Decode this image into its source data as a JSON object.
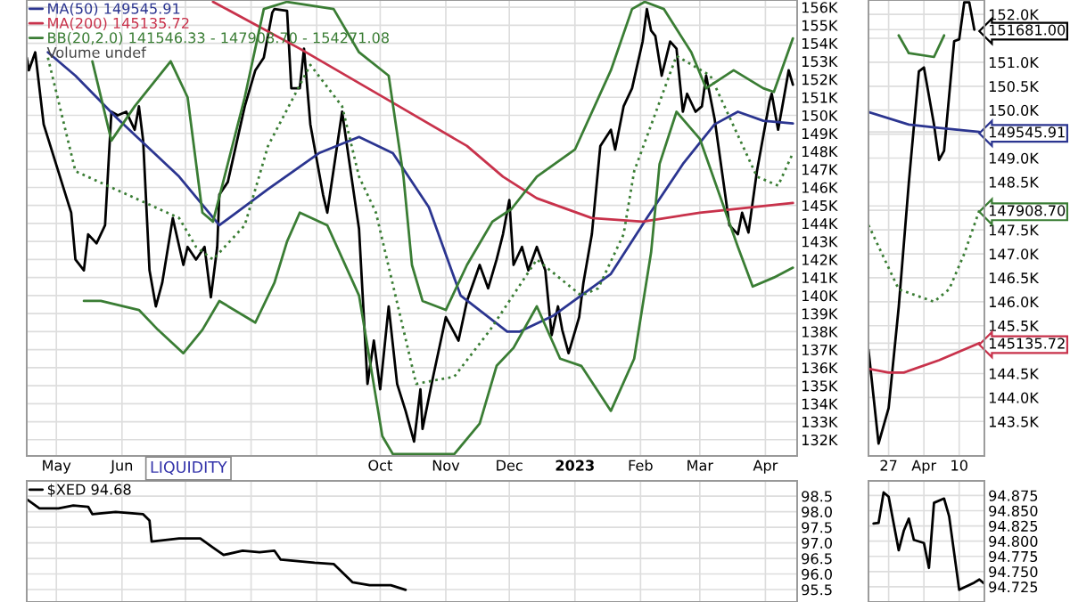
{
  "chart_data": [
    {
      "type": "line",
      "grid": true,
      "legend": "top left",
      "xlim": [
        "2022-04-17",
        "2023-04-16"
      ],
      "ylim": [
        131100,
        156400
      ],
      "xticks": [
        {
          "value": "2022-05-01",
          "label": "May"
        },
        {
          "value": "2022-06-01",
          "label": "Jun"
        },
        {
          "value": "2022-07-01",
          "label": null
        },
        {
          "value": "2022-08-01",
          "label": null
        },
        {
          "value": "2022-09-01",
          "label": null
        },
        {
          "value": "2022-10-01",
          "label": "Oct"
        },
        {
          "value": "2022-11-01",
          "label": "Nov"
        },
        {
          "value": "2022-12-01",
          "label": "Dec"
        },
        {
          "value": "2023-01-01",
          "label": "2023"
        },
        {
          "value": "2023-02-01",
          "label": "Feb"
        },
        {
          "value": "2023-03-01",
          "label": "Mar"
        },
        {
          "value": "2023-04-01",
          "label": "Apr"
        }
      ],
      "yticks": [
        {
          "value": 132000,
          "label": "132K"
        },
        {
          "value": 133000,
          "label": "133K"
        },
        {
          "value": 134000,
          "label": "134K"
        },
        {
          "value": 135000,
          "label": "135K"
        },
        {
          "value": 136000,
          "label": "136K"
        },
        {
          "value": 137000,
          "label": "137K"
        },
        {
          "value": 138000,
          "label": "138K"
        },
        {
          "value": 139000,
          "label": "139K"
        },
        {
          "value": 140000,
          "label": "140K"
        },
        {
          "value": 141000,
          "label": "141K"
        },
        {
          "value": 142000,
          "label": "142K"
        },
        {
          "value": 143000,
          "label": "143K"
        },
        {
          "value": 144000,
          "label": "144K"
        },
        {
          "value": 145000,
          "label": "145K"
        },
        {
          "value": 146000,
          "label": "146K"
        },
        {
          "value": 147000,
          "label": "147K"
        },
        {
          "value": 148000,
          "label": "148K"
        },
        {
          "value": 149000,
          "label": "149K"
        },
        {
          "value": 150000,
          "label": "150K"
        },
        {
          "value": 151000,
          "label": "151K"
        },
        {
          "value": 152000,
          "label": "152K"
        },
        {
          "value": 153000,
          "label": "153K"
        },
        {
          "value": 154000,
          "label": "154K"
        },
        {
          "value": 155000,
          "label": "155K"
        },
        {
          "value": 156000,
          "label": "156K"
        }
      ],
      "annotations": [
        "Volume undef",
        "LIQUIDITY"
      ],
      "series": [
        {
          "color": "#000000",
          "x": [
            "2022-04-17",
            "2022-04-18",
            "2022-04-21",
            "2022-04-25",
            "2022-05-08",
            "2022-05-10",
            "2022-05-14",
            "2022-05-16",
            "2022-05-20",
            "2022-05-24",
            "2022-05-27",
            "2022-05-30",
            "2022-06-03",
            "2022-06-07",
            "2022-06-09",
            "2022-06-11",
            "2022-06-14",
            "2022-06-17",
            "2022-06-20",
            "2022-06-25",
            "2022-06-30",
            "2022-07-02",
            "2022-07-06",
            "2022-07-10",
            "2022-07-13",
            "2022-07-16",
            "2022-07-17",
            "2022-07-21",
            "2022-07-29",
            "2022-08-03",
            "2022-08-07",
            "2022-08-11",
            "2022-08-12",
            "2022-08-18",
            "2022-08-20",
            "2022-08-24",
            "2022-08-26",
            "2022-08-29",
            "2022-09-04",
            "2022-09-06",
            "2022-09-13",
            "2022-09-19",
            "2022-09-21",
            "2022-09-25",
            "2022-09-28",
            "2022-10-01",
            "2022-10-05",
            "2022-10-09",
            "2022-10-13",
            "2022-10-17",
            "2022-10-20",
            "2022-10-21",
            "2022-10-26",
            "2022-11-01",
            "2022-11-07",
            "2022-11-11",
            "2022-11-17",
            "2022-11-21",
            "2022-11-25",
            "2022-11-28",
            "2022-12-01",
            "2022-12-03",
            "2022-12-07",
            "2022-12-10",
            "2022-12-14",
            "2022-12-18",
            "2022-12-21",
            "2022-12-24",
            "2022-12-26",
            "2022-12-29",
            "2023-01-03",
            "2023-01-05",
            "2023-01-09",
            "2023-01-13",
            "2023-01-18",
            "2023-01-20",
            "2023-01-24",
            "2023-01-28",
            "2023-02-02",
            "2023-02-04",
            "2023-02-06",
            "2023-02-08",
            "2023-02-11",
            "2023-02-15",
            "2023-02-18",
            "2023-02-21",
            "2023-02-23",
            "2023-02-27",
            "2023-03-02",
            "2023-03-04",
            "2023-03-08",
            "2023-03-13",
            "2023-03-15",
            "2023-03-19",
            "2023-03-21",
            "2023-03-24",
            "2023-03-28",
            "2023-04-03",
            "2023-04-04",
            "2023-04-07",
            "2023-04-09",
            "2023-04-12",
            "2023-04-14"
          ],
          "values": [
            153200,
            152500,
            153500,
            149500,
            144600,
            142000,
            141400,
            143400,
            142900,
            143900,
            150200,
            150000,
            150200,
            149200,
            150500,
            148600,
            141400,
            139400,
            140700,
            144300,
            141700,
            142700,
            142000,
            142700,
            139900,
            142700,
            145600,
            146300,
            150500,
            152500,
            153200,
            155700,
            155900,
            155800,
            151500,
            151500,
            153700,
            149500,
            145600,
            144600,
            150200,
            145300,
            143700,
            135100,
            137500,
            134800,
            139400,
            135100,
            133600,
            131900,
            134800,
            132600,
            135500,
            138800,
            137500,
            139700,
            141700,
            140400,
            142000,
            143400,
            145300,
            141700,
            142700,
            141400,
            142700,
            141400,
            137800,
            139400,
            138100,
            136800,
            138800,
            140700,
            143400,
            148300,
            149200,
            148100,
            150500,
            151500,
            154100,
            155900,
            154700,
            154400,
            152200,
            154100,
            153700,
            150200,
            151200,
            150200,
            150500,
            152200,
            149800,
            145600,
            143900,
            143400,
            144600,
            143500,
            146900,
            150800,
            151200,
            149200,
            150500,
            152500,
            151700
          ]
        },
        {
          "name": "MA(50) 149545.91",
          "color": "#2b3590",
          "x": [
            "2022-04-27",
            "2022-05-10",
            "2022-05-30",
            "2022-06-28",
            "2022-07-17",
            "2022-07-25",
            "2022-08-09",
            "2022-09-02",
            "2022-09-21",
            "2022-10-07",
            "2022-10-24",
            "2022-11-08",
            "2022-11-30",
            "2022-12-06",
            "2022-12-22",
            "2023-01-18",
            "2023-02-04",
            "2023-02-21",
            "2023-03-08",
            "2023-03-19",
            "2023-03-31",
            "2023-04-14"
          ],
          "values": [
            153500,
            152200,
            149800,
            146600,
            143900,
            144600,
            145900,
            147900,
            148800,
            147900,
            144900,
            140000,
            138000,
            138000,
            138900,
            141200,
            144300,
            147300,
            149500,
            150200,
            149700,
            149546
          ]
        },
        {
          "name": "MA(200) 145135.72",
          "color": "#c8324b",
          "x": [
            "2022-07-14",
            "2022-08-24",
            "2022-10-07",
            "2022-11-11",
            "2022-11-28",
            "2022-12-14",
            "2023-01-09",
            "2023-02-02",
            "2023-03-01",
            "2023-04-14"
          ],
          "values": [
            156300,
            153700,
            150700,
            148300,
            146600,
            145400,
            144300,
            144100,
            144600,
            145136
          ]
        },
        {
          "name": "BB(20,2.0) 141546.33 - 147908.70 - 154271.08",
          "color": "#3a7d34",
          "x": [
            "2022-05-14",
            "2022-05-22",
            "2022-06-09",
            "2022-06-18",
            "2022-06-30",
            "2022-07-09",
            "2022-07-17",
            "2022-08-03",
            "2022-08-12",
            "2022-08-18",
            "2022-08-24",
            "2022-09-06",
            "2022-09-21",
            "2022-10-02",
            "2022-10-07",
            "2022-11-05",
            "2022-11-17",
            "2022-11-25",
            "2022-12-03",
            "2022-12-14",
            "2022-12-25",
            "2023-01-04",
            "2023-01-18",
            "2023-01-29",
            "2023-02-06",
            "2023-02-10",
            "2023-02-18",
            "2023-03-01",
            "2023-03-19",
            "2023-03-26",
            "2023-04-05",
            "2023-04-14"
          ],
          "values": [
            139700,
            139700,
            139200,
            138100,
            136800,
            138100,
            139700,
            138500,
            140700,
            143000,
            144600,
            143900,
            140000,
            132200,
            131200,
            131200,
            132900,
            136100,
            137100,
            139400,
            136500,
            136100,
            133600,
            136500,
            142400,
            147300,
            150200,
            148700,
            142700,
            140500,
            141000,
            141546
          ]
        },
        {
          "color": "#3a7d34",
          "line_style": "dotted",
          "x": [
            "2022-04-27",
            "2022-05-10",
            "2022-06-28",
            "2022-07-06",
            "2022-07-14",
            "2022-07-29",
            "2022-08-09",
            "2022-08-29",
            "2022-09-13",
            "2022-09-21",
            "2022-09-29",
            "2022-10-18",
            "2022-11-05",
            "2022-11-22",
            "2022-12-14",
            "2023-01-04",
            "2023-01-12",
            "2023-01-24",
            "2023-01-29",
            "2023-02-18",
            "2023-03-06",
            "2023-03-28",
            "2023-04-07",
            "2023-04-14"
          ],
          "values": [
            153200,
            146900,
            144300,
            142700,
            142000,
            143900,
            148300,
            152800,
            150500,
            146600,
            144600,
            135100,
            135500,
            138100,
            142000,
            140000,
            140400,
            143400,
            146900,
            153300,
            152200,
            146600,
            146100,
            147909
          ]
        },
        {
          "color": "#3a7d34",
          "x": [
            "2022-05-18",
            "2022-05-27",
            "2022-06-07",
            "2022-06-24",
            "2022-07-02",
            "2022-07-09",
            "2022-07-14",
            "2022-07-29",
            "2022-08-07",
            "2022-08-18",
            "2022-09-09",
            "2022-09-21",
            "2022-10-05",
            "2022-10-12",
            "2022-10-16",
            "2022-10-21",
            "2022-11-01",
            "2022-11-11",
            "2022-11-23",
            "2022-12-02",
            "2022-12-14",
            "2023-01-01",
            "2023-01-18",
            "2023-01-28",
            "2023-02-03",
            "2023-02-12",
            "2023-02-25",
            "2023-03-04",
            "2023-03-17",
            "2023-03-31",
            "2023-04-05",
            "2023-04-14"
          ],
          "values": [
            153000,
            148600,
            150500,
            153000,
            151000,
            144600,
            144100,
            151000,
            155900,
            156300,
            155900,
            153500,
            152200,
            146600,
            141700,
            139700,
            139200,
            141700,
            144100,
            144800,
            146600,
            148100,
            152500,
            155900,
            156300,
            155900,
            153500,
            151500,
            152500,
            151500,
            151300,
            154271
          ]
        }
      ]
    },
    {
      "type": "line",
      "grid": true,
      "xlim": [
        "2023-03-23",
        "2023-04-15"
      ],
      "ylim": [
        142780,
        152300
      ],
      "xticks": [
        {
          "value": "2023-03-27",
          "label": "27"
        },
        {
          "value": "2023-04-03",
          "label": "Apr"
        },
        {
          "value": "2023-04-10",
          "label": "10"
        }
      ],
      "yticks": [
        {
          "value": 143500,
          "label": "143.5K"
        },
        {
          "value": 144000,
          "label": "144.0K"
        },
        {
          "value": 144500,
          "label": "144.5K"
        },
        {
          "value": 145000,
          "label": null
        },
        {
          "value": 145500,
          "label": "145.5K"
        },
        {
          "value": 146000,
          "label": "146.0K"
        },
        {
          "value": 146500,
          "label": "146.5K"
        },
        {
          "value": 147000,
          "label": "147.0K"
        },
        {
          "value": 147500,
          "label": "147.5K"
        },
        {
          "value": 148000,
          "label": null
        },
        {
          "value": 148500,
          "label": "148.5K"
        },
        {
          "value": 149000,
          "label": "149.0K"
        },
        {
          "value": 149500,
          "label": null
        },
        {
          "value": 150000,
          "label": "150.0K"
        },
        {
          "value": 150500,
          "label": "150.5K"
        },
        {
          "value": 151000,
          "label": "151.0K"
        },
        {
          "value": 151500,
          "label": null
        },
        {
          "value": 152000,
          "label": "152.0K"
        },
        {
          "value": 151681,
          "label": "151681.00"
        },
        {
          "value": 149545.91,
          "label": "149545.91"
        },
        {
          "value": 147908.7,
          "label": "147908.70"
        },
        {
          "value": 145135.72,
          "label": "145135.72"
        }
      ],
      "series": [
        {
          "color": "#000000",
          "x": [
            "2023-03-23",
            "2023-03-25",
            "2023-03-27",
            "2023-03-29",
            "2023-03-31",
            "2023-04-02",
            "2023-04-03",
            "2023-04-05",
            "2023-04-06",
            "2023-04-07",
            "2023-04-09",
            "2023-04-10",
            "2023-04-11",
            "2023-04-12",
            "2023-04-13"
          ],
          "values": [
            145000,
            143040,
            143780,
            145890,
            148480,
            150810,
            150890,
            149700,
            148960,
            149150,
            151440,
            151480,
            152250,
            152250,
            151681
          ]
        },
        {
          "color": "#2b3590",
          "x": [
            "2023-03-23",
            "2023-03-31",
            "2023-04-06",
            "2023-04-14"
          ],
          "values": [
            149960,
            149700,
            149630,
            149545.91
          ]
        },
        {
          "color": "#c8324b",
          "x": [
            "2023-03-23",
            "2023-03-27",
            "2023-03-30",
            "2023-04-06",
            "2023-04-14"
          ],
          "values": [
            144600,
            144520,
            144520,
            144780,
            145135.72
          ]
        },
        {
          "color": "#3a7d34",
          "line_style": "dotted",
          "x": [
            "2023-03-23",
            "2023-03-29",
            "2023-04-05",
            "2023-04-08",
            "2023-04-11",
            "2023-04-14"
          ],
          "values": [
            147600,
            146260,
            146000,
            146260,
            147000,
            147908.7
          ]
        },
        {
          "color": "#3a7d34",
          "x": [
            "2023-03-29",
            "2023-03-31",
            "2023-04-05",
            "2023-04-07"
          ],
          "values": [
            151560,
            151190,
            151110,
            151560
          ]
        }
      ]
    },
    {
      "type": "line",
      "grid": true,
      "legend": "top left",
      "tick_labels": "y",
      "xlim": [
        "2022-04-17",
        "2023-04-16"
      ],
      "ylim": [
        95.1,
        98.99
      ],
      "xticks": [
        {
          "value": "2022-05-01",
          "label": null
        },
        {
          "value": "2022-06-01",
          "label": null
        },
        {
          "value": "2022-07-01",
          "label": null
        },
        {
          "value": "2022-08-01",
          "label": null
        },
        {
          "value": "2022-09-01",
          "label": null
        },
        {
          "value": "2022-10-01",
          "label": null
        },
        {
          "value": "2022-11-01",
          "label": null
        },
        {
          "value": "2022-12-01",
          "label": null
        },
        {
          "value": "2023-01-01",
          "label": null
        },
        {
          "value": "2023-02-01",
          "label": null
        },
        {
          "value": "2023-03-01",
          "label": null
        },
        {
          "value": "2023-04-01",
          "label": null
        }
      ],
      "yticks": [
        95.5,
        {
          "value": 96,
          "label": "96.0"
        },
        96.5,
        {
          "value": 97,
          "label": "97.0"
        },
        97.5,
        {
          "value": 98,
          "label": "98.0"
        },
        98.5
      ],
      "series": [
        {
          "name": "$XED 94.68",
          "color": "#000000",
          "x": [
            "2022-04-17",
            "2022-04-23",
            "2022-05-02",
            "2022-05-09",
            "2022-05-16",
            "2022-05-18",
            "2022-05-29",
            "2022-06-11",
            "2022-06-14",
            "2022-06-15",
            "2022-06-28",
            "2022-07-08",
            "2022-07-14",
            "2022-07-19",
            "2022-07-28",
            "2022-08-05",
            "2022-08-12",
            "2022-08-15",
            "2022-08-31",
            "2022-09-09",
            "2022-09-18",
            "2022-09-26",
            "2022-10-06",
            "2022-10-13"
          ],
          "values": [
            98.4,
            98.11,
            98.11,
            98.2,
            98.16,
            97.92,
            97.99,
            97.92,
            97.72,
            97.04,
            97.14,
            97.14,
            96.85,
            96.61,
            96.75,
            96.7,
            96.75,
            96.46,
            96.36,
            96.32,
            95.73,
            95.64,
            95.64,
            95.49
          ]
        }
      ]
    },
    {
      "type": "line",
      "grid": true,
      "tick_labels": "y",
      "xlim": [
        "2023-03-23",
        "2023-04-15"
      ],
      "ylim": [
        94.7,
        94.899
      ],
      "xticks": [
        {
          "value": "2023-03-27",
          "label": null
        },
        {
          "value": "2023-04-03",
          "label": null
        },
        {
          "value": "2023-04-10",
          "label": null
        }
      ],
      "yticks": [
        {
          "value": 94.725,
          "label": "94.725"
        },
        {
          "value": 94.75,
          "label": "94.750"
        },
        {
          "value": 94.775,
          "label": "94.775"
        },
        {
          "value": 94.8,
          "label": "94.800"
        },
        {
          "value": 94.825,
          "label": "94.825"
        },
        {
          "value": 94.85,
          "label": "94.850"
        },
        {
          "value": 94.875,
          "label": "94.875"
        }
      ],
      "series": [
        {
          "color": "#000000",
          "x": [
            "2023-03-24",
            "2023-03-25",
            "2023-03-26",
            "2023-03-27",
            "2023-03-29",
            "2023-03-30",
            "2023-03-31",
            "2023-04-01",
            "2023-04-03",
            "2023-04-04",
            "2023-04-05",
            "2023-04-07",
            "2023-04-08",
            "2023-04-10",
            "2023-04-13",
            "2023-04-14",
            "2023-04-15"
          ],
          "values": [
            94.829,
            94.83,
            94.88,
            94.873,
            94.785,
            94.817,
            94.837,
            94.802,
            94.797,
            94.756,
            94.863,
            94.87,
            94.841,
            94.72,
            94.732,
            94.737,
            94.73
          ]
        }
      ]
    }
  ]
}
